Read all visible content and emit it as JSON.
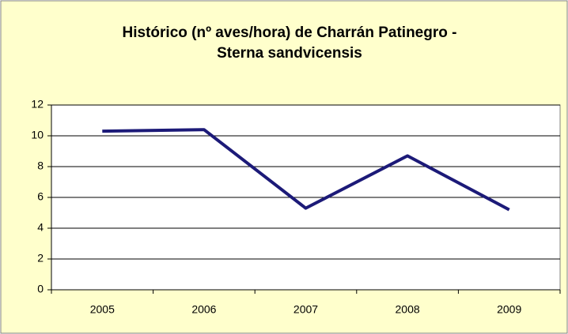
{
  "chart_data": {
    "type": "line",
    "title": [
      "Histórico (nº aves/hora) de Charrán  Patinegro -",
      "Sterna sandvicensis"
    ],
    "categories": [
      "2005",
      "2006",
      "2007",
      "2008",
      "2009"
    ],
    "series": [
      {
        "name": "Charrán Patinegro",
        "color": "#1c1a78",
        "values": [
          10.3,
          10.4,
          5.3,
          8.7,
          5.2
        ]
      }
    ],
    "ylim": [
      0,
      12
    ],
    "yticks": [
      0,
      2,
      4,
      6,
      8,
      10,
      12
    ],
    "grid": true
  }
}
